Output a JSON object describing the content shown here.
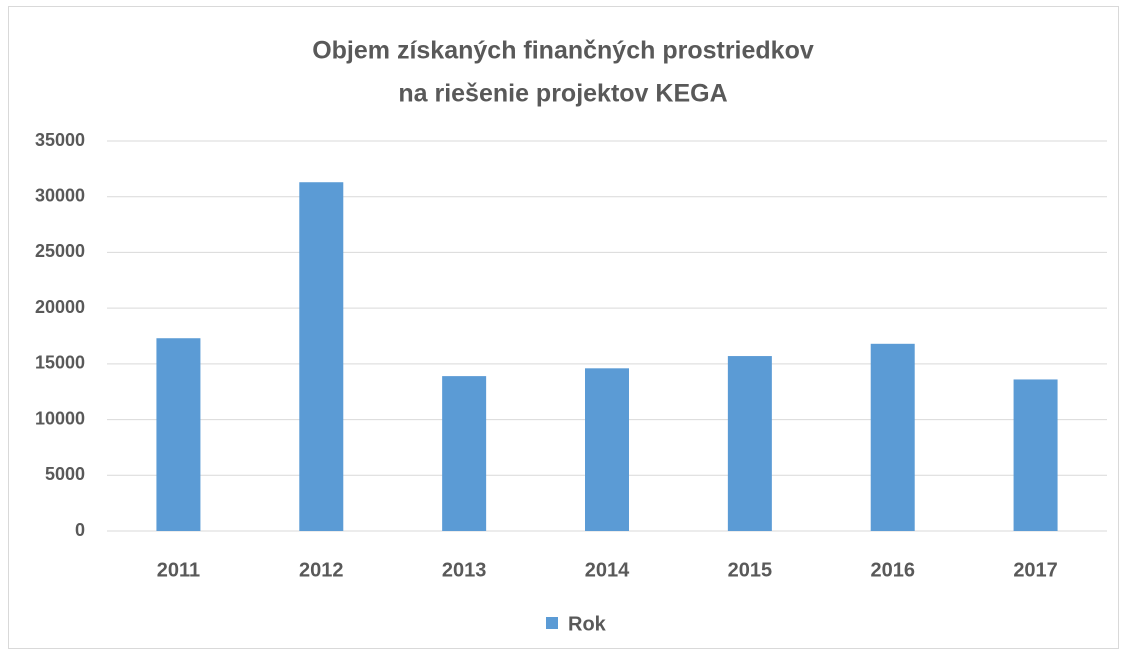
{
  "chart_data": {
    "type": "bar",
    "title": [
      "Objem získaných finančných prostriedkov",
      "na riešenie projektov KEGA"
    ],
    "categories": [
      "2011",
      "2012",
      "2013",
      "2014",
      "2015",
      "2016",
      "2017"
    ],
    "series": [
      {
        "name": "Rok",
        "color": "#5b9bd5",
        "values": [
          17300,
          31300,
          13900,
          14600,
          15700,
          16800,
          13600
        ]
      }
    ],
    "ylim": [
      0,
      35000
    ],
    "yticks": [
      0,
      5000,
      10000,
      15000,
      20000,
      25000,
      30000,
      35000
    ],
    "grid": true,
    "legend": "bottom"
  }
}
